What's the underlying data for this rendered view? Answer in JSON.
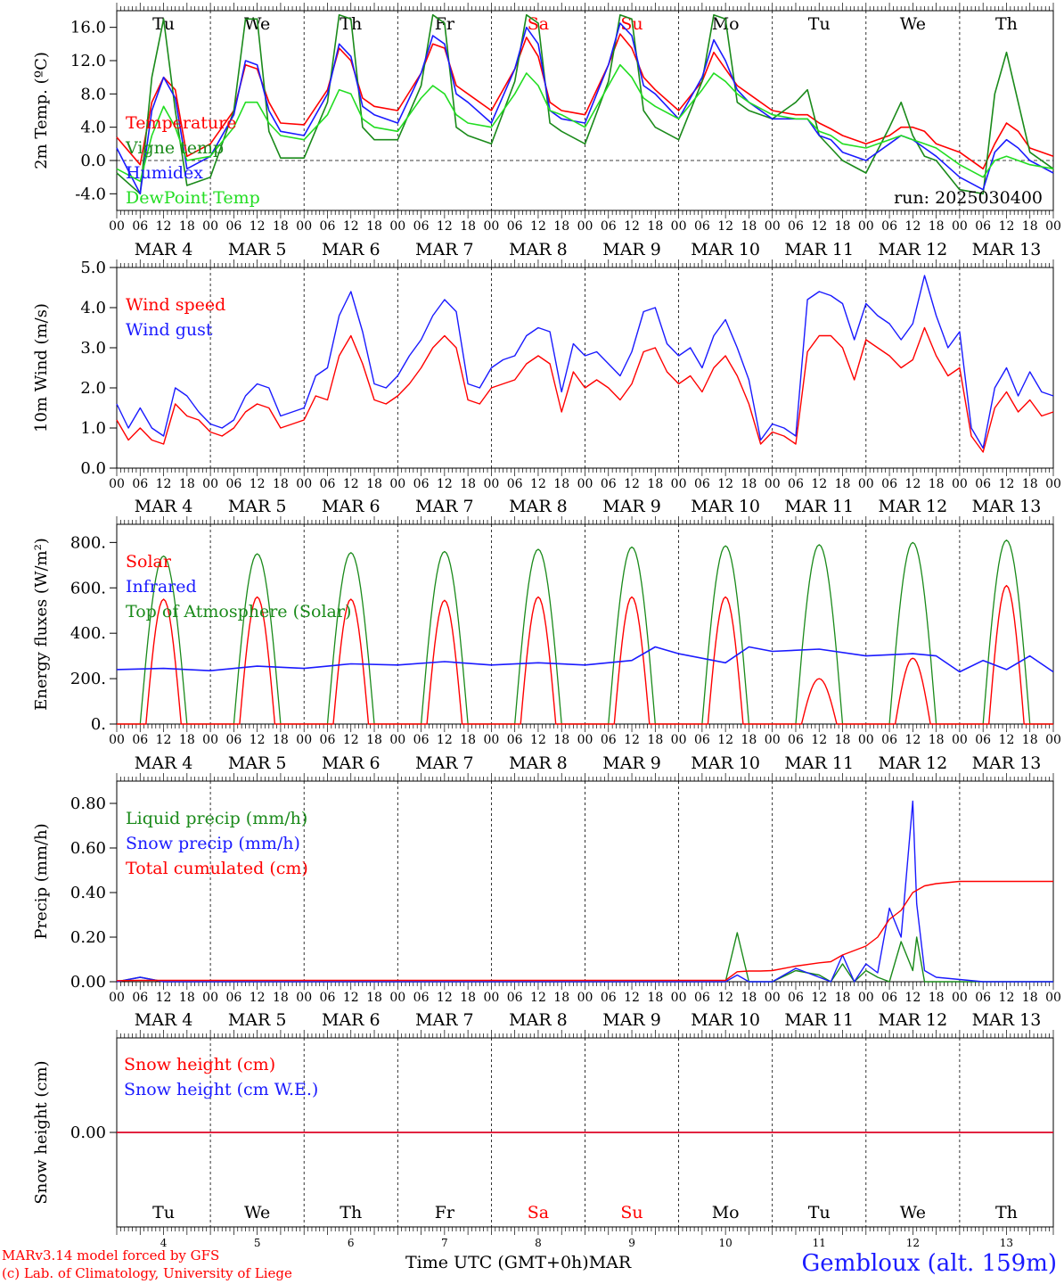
{
  "run_label": "run: 2025030400",
  "footer": {
    "model": "MARv3.14 model forced by GFS",
    "credit": "(c) Lab. of Climatology, University of Liege",
    "axis_title": "Time UTC (GMT+0h)",
    "month": "MAR",
    "station": "Gembloux (alt. 159m)"
  },
  "colors": {
    "red": "#ff0000",
    "blue": "#1a1aff",
    "darkgreen": "#1a8a1a",
    "lightgreen": "#22dd22",
    "saturday_sunday": "#ff0000"
  },
  "days": [
    {
      "weekday": "Tu",
      "date": "MAR  4",
      "num": "4"
    },
    {
      "weekday": "We",
      "date": "MAR  5",
      "num": "5"
    },
    {
      "weekday": "Th",
      "date": "MAR  6",
      "num": "6"
    },
    {
      "weekday": "Fr",
      "date": "MAR  7",
      "num": "7"
    },
    {
      "weekday": "Sa",
      "date": "MAR  8",
      "num": "8",
      "weekend": true
    },
    {
      "weekday": "Su",
      "date": "MAR  9",
      "num": "9",
      "weekend": true
    },
    {
      "weekday": "Mo",
      "date": "MAR 10",
      "num": "10"
    },
    {
      "weekday": "Tu",
      "date": "MAR 11",
      "num": "11"
    },
    {
      "weekday": "We",
      "date": "MAR 12",
      "num": "12"
    },
    {
      "weekday": "Th",
      "date": "MAR 13",
      "num": "13"
    }
  ],
  "hour_ticks": [
    "00",
    "06",
    "12",
    "18"
  ],
  "chart_data": [
    {
      "type": "line",
      "ylabel": "2m Temp. (ºC)",
      "ylim": [
        -6,
        18
      ],
      "yticks": [
        "-4.0",
        "0.0",
        "4.0",
        "8.0",
        "12.0",
        "16.0"
      ],
      "ytick_values": [
        -4,
        0,
        4,
        8,
        12,
        16
      ],
      "zero_line": true,
      "legend": [
        "Temperature",
        "Vigne temp",
        "Humidex",
        "DewPoint Temp"
      ],
      "x_hours": [
        0,
        6,
        9,
        12,
        15,
        18,
        24,
        30,
        33,
        36,
        39,
        42,
        48,
        54,
        57,
        60,
        63,
        66,
        72,
        78,
        81,
        84,
        87,
        90,
        96,
        102,
        105,
        108,
        111,
        114,
        120,
        126,
        129,
        132,
        135,
        138,
        144,
        150,
        153,
        156,
        159,
        162,
        168,
        174,
        177,
        180,
        183,
        186,
        192,
        198,
        201,
        204,
        207,
        210,
        216,
        222,
        225,
        228,
        231,
        234,
        240
      ],
      "series": [
        {
          "name": "Temperature",
          "color": "#ff0000",
          "values": [
            2.8,
            -0.5,
            7.0,
            10.0,
            8.5,
            0.5,
            2.0,
            6.0,
            11.5,
            11.0,
            7.0,
            4.5,
            4.3,
            8.5,
            13.5,
            12.0,
            7.5,
            6.5,
            6.0,
            10.5,
            14.0,
            13.5,
            9.0,
            8.0,
            6.0,
            11.0,
            14.8,
            12.5,
            7.0,
            6.0,
            5.5,
            11.5,
            15.2,
            13.5,
            10.0,
            8.5,
            6.0,
            9.5,
            13.0,
            11.0,
            9.0,
            8.0,
            6.0,
            5.5,
            5.5,
            4.5,
            3.8,
            3.0,
            2.0,
            3.0,
            4.0,
            4.0,
            3.5,
            2.0,
            1.0,
            -1.0,
            2.0,
            4.5,
            3.5,
            1.5,
            0.5
          ]
        },
        {
          "name": "Vigne temp",
          "color": "#1a8a1a",
          "values": [
            -1.5,
            -4.0,
            10.0,
            17.0,
            6.0,
            -3.0,
            -2.0,
            6.0,
            17.0,
            17.0,
            3.5,
            0.3,
            0.3,
            7.0,
            17.5,
            17.0,
            4.0,
            2.5,
            2.5,
            9.0,
            17.5,
            16.5,
            4.0,
            3.0,
            2.0,
            9.5,
            17.5,
            16.5,
            4.5,
            3.5,
            2.0,
            9.5,
            17.5,
            17.0,
            6.0,
            4.0,
            2.5,
            9.5,
            17.5,
            17.0,
            7.0,
            6.0,
            5.0,
            7.0,
            8.5,
            3.0,
            1.5,
            0.0,
            -1.5,
            4.0,
            7.0,
            3.0,
            0.5,
            0.0,
            -3.5,
            -4.0,
            8.0,
            13.0,
            7.0,
            1.0,
            -1.0
          ]
        },
        {
          "name": "Humidex",
          "color": "#1a1aff",
          "values": [
            1.5,
            -4.0,
            6.0,
            10.0,
            7.5,
            -1.0,
            0.5,
            5.5,
            12.0,
            11.5,
            6.0,
            3.5,
            3.0,
            8.0,
            14.0,
            12.5,
            6.5,
            5.5,
            4.5,
            10.5,
            15.0,
            14.0,
            8.0,
            7.0,
            4.5,
            11.0,
            16.0,
            14.0,
            6.0,
            5.0,
            4.5,
            11.5,
            16.5,
            15.0,
            9.0,
            8.0,
            5.0,
            10.0,
            14.5,
            12.0,
            8.5,
            7.0,
            5.0,
            5.0,
            5.0,
            3.0,
            2.5,
            1.0,
            0.0,
            2.0,
            3.0,
            2.5,
            1.5,
            0.5,
            -2.0,
            -3.5,
            1.0,
            2.5,
            1.5,
            0.0,
            -1.5
          ]
        },
        {
          "name": "DewPoint Temp",
          "color": "#22dd22",
          "values": [
            -1.0,
            -2.5,
            3.0,
            6.5,
            4.0,
            0.0,
            0.5,
            4.0,
            7.0,
            7.0,
            4.5,
            3.0,
            2.5,
            5.5,
            8.5,
            8.0,
            5.0,
            4.0,
            3.5,
            7.5,
            9.0,
            8.0,
            5.5,
            4.5,
            4.0,
            8.0,
            10.5,
            9.0,
            6.0,
            5.5,
            4.0,
            9.0,
            11.5,
            10.0,
            7.5,
            6.5,
            5.0,
            8.5,
            10.5,
            9.5,
            8.0,
            7.0,
            5.5,
            5.0,
            5.0,
            3.5,
            3.0,
            2.0,
            1.5,
            2.5,
            3.0,
            2.5,
            2.0,
            1.5,
            -0.5,
            -2.0,
            0.0,
            0.5,
            0.0,
            -0.5,
            -1.0
          ]
        }
      ]
    },
    {
      "type": "line",
      "ylabel": "10m Wind (m/s)",
      "ylim": [
        0,
        5
      ],
      "yticks": [
        "0.0",
        "1.0",
        "2.0",
        "3.0",
        "4.0",
        "5.0"
      ],
      "ytick_values": [
        0,
        1,
        2,
        3,
        4,
        5
      ],
      "legend": [
        "Wind speed",
        "Wind gust"
      ],
      "x_hours": [
        0,
        3,
        6,
        9,
        12,
        15,
        18,
        21,
        24,
        27,
        30,
        33,
        36,
        39,
        42,
        45,
        48,
        51,
        54,
        57,
        60,
        63,
        66,
        69,
        72,
        75,
        78,
        81,
        84,
        87,
        90,
        93,
        96,
        99,
        102,
        105,
        108,
        111,
        114,
        117,
        120,
        123,
        126,
        129,
        132,
        135,
        138,
        141,
        144,
        147,
        150,
        153,
        156,
        159,
        162,
        165,
        168,
        171,
        174,
        177,
        180,
        183,
        186,
        189,
        192,
        195,
        198,
        201,
        204,
        207,
        210,
        213,
        216,
        219,
        222,
        225,
        228,
        231,
        234,
        237,
        240
      ],
      "series": [
        {
          "name": "Wind speed",
          "color": "#ff0000",
          "values": [
            1.2,
            0.7,
            1.0,
            0.7,
            0.6,
            1.6,
            1.3,
            1.2,
            0.9,
            0.8,
            1.0,
            1.4,
            1.6,
            1.5,
            1.0,
            1.1,
            1.2,
            1.8,
            1.7,
            2.8,
            3.3,
            2.6,
            1.7,
            1.6,
            1.8,
            2.1,
            2.5,
            3.0,
            3.3,
            3.0,
            1.7,
            1.6,
            2.0,
            2.1,
            2.2,
            2.6,
            2.8,
            2.6,
            1.4,
            2.4,
            2.0,
            2.2,
            2.0,
            1.7,
            2.1,
            2.9,
            3.0,
            2.4,
            2.1,
            2.3,
            1.9,
            2.5,
            2.8,
            2.3,
            1.6,
            0.6,
            0.9,
            0.8,
            0.6,
            2.9,
            3.3,
            3.3,
            3.0,
            2.2,
            3.2,
            3.0,
            2.8,
            2.5,
            2.7,
            3.5,
            2.8,
            2.3,
            2.5,
            0.8,
            0.4,
            1.5,
            1.9,
            1.4,
            1.7,
            1.3,
            1.4
          ]
        },
        {
          "name": "Wind gust",
          "color": "#1a1aff",
          "values": [
            1.6,
            1.0,
            1.5,
            1.0,
            0.8,
            2.0,
            1.8,
            1.4,
            1.1,
            1.0,
            1.2,
            1.8,
            2.1,
            2.0,
            1.3,
            1.4,
            1.5,
            2.3,
            2.5,
            3.8,
            4.4,
            3.4,
            2.1,
            2.0,
            2.3,
            2.8,
            3.2,
            3.8,
            4.2,
            3.9,
            2.1,
            2.0,
            2.5,
            2.7,
            2.8,
            3.3,
            3.5,
            3.4,
            1.9,
            3.1,
            2.8,
            2.9,
            2.6,
            2.3,
            2.9,
            3.9,
            4.0,
            3.1,
            2.8,
            3.0,
            2.5,
            3.3,
            3.7,
            3.0,
            2.2,
            0.7,
            1.1,
            1.0,
            0.8,
            4.2,
            4.4,
            4.3,
            4.1,
            3.2,
            4.1,
            3.8,
            3.6,
            3.2,
            3.6,
            4.8,
            3.8,
            3.0,
            3.4,
            1.0,
            0.5,
            2.0,
            2.5,
            1.8,
            2.4,
            1.9,
            1.8
          ]
        }
      ]
    },
    {
      "type": "line",
      "ylabel": "Energy fluxes (W/m²)",
      "ylim": [
        0,
        880
      ],
      "yticks": [
        "0.",
        "200.",
        "400.",
        "600.",
        "800."
      ],
      "ytick_values": [
        0,
        200,
        400,
        600,
        800
      ],
      "legend": [
        "Solar",
        "Infrared",
        "Top of Atmosphere (Solar)"
      ],
      "solar_peaks": [
        550,
        560,
        550,
        545,
        560,
        560,
        560,
        200,
        290,
        610
      ],
      "toa_peaks": [
        740,
        750,
        755,
        760,
        770,
        780,
        785,
        790,
        800,
        810
      ],
      "infrared_hours": [
        0,
        12,
        24,
        36,
        48,
        60,
        72,
        84,
        96,
        108,
        120,
        132,
        138,
        144,
        156,
        162,
        168,
        180,
        192,
        204,
        210,
        216,
        222,
        228,
        234,
        240
      ],
      "infrared_values": [
        240,
        245,
        235,
        255,
        245,
        265,
        260,
        275,
        260,
        270,
        260,
        280,
        340,
        310,
        270,
        340,
        320,
        330,
        300,
        310,
        300,
        230,
        280,
        240,
        300,
        230
      ],
      "series_colors": {
        "Solar": "#ff0000",
        "Infrared": "#1a1aff",
        "Top of Atmosphere (Solar)": "#1a8a1a"
      }
    },
    {
      "type": "line",
      "ylabel": "Precip (mm/h)",
      "ylim": [
        0,
        0.9
      ],
      "yticks": [
        "0.00",
        "0.20",
        "0.40",
        "0.60",
        "0.80"
      ],
      "ytick_values": [
        0,
        0.2,
        0.4,
        0.6,
        0.8
      ],
      "legend": [
        "Liquid precip (mm/h)",
        "Snow precip (mm/h)",
        "Total cumulated (cm)"
      ],
      "x_hours": [
        0,
        6,
        12,
        18,
        24,
        48,
        72,
        96,
        120,
        144,
        156,
        159,
        162,
        165,
        168,
        174,
        180,
        183,
        186,
        189,
        192,
        195,
        198,
        201,
        204,
        205,
        207,
        210,
        216,
        222,
        228,
        234,
        240
      ],
      "series": [
        {
          "name": "Liquid precip (mm/h)",
          "color": "#1a8a1a",
          "values": [
            0.0,
            0.02,
            0.0,
            0.0,
            0.0,
            0.0,
            0.0,
            0.0,
            0.0,
            0.0,
            0.0,
            0.22,
            0.0,
            0.0,
            0.0,
            0.05,
            0.03,
            0.0,
            0.08,
            0.0,
            0.05,
            0.02,
            0.0,
            0.18,
            0.05,
            0.2,
            0.0,
            0.0,
            0.0,
            0.0,
            0.0,
            0.0,
            0.0
          ]
        },
        {
          "name": "Snow precip (mm/h)",
          "color": "#1a1aff",
          "values": [
            0.0,
            0.02,
            0.0,
            0.0,
            0.0,
            0.0,
            0.0,
            0.0,
            0.0,
            0.0,
            0.0,
            0.03,
            0.0,
            0.0,
            0.0,
            0.06,
            0.02,
            0.0,
            0.12,
            0.0,
            0.08,
            0.04,
            0.33,
            0.2,
            0.81,
            0.35,
            0.05,
            0.02,
            0.01,
            0.0,
            0.0,
            0.0,
            0.0
          ]
        },
        {
          "name": "Total cumulated (cm)",
          "color": "#ff0000",
          "values": [
            0.005,
            0.006,
            0.006,
            0.006,
            0.006,
            0.006,
            0.006,
            0.006,
            0.006,
            0.006,
            0.006,
            0.045,
            0.048,
            0.048,
            0.05,
            0.07,
            0.085,
            0.09,
            0.12,
            0.14,
            0.16,
            0.2,
            0.28,
            0.32,
            0.4,
            0.41,
            0.43,
            0.44,
            0.45,
            0.45,
            0.45,
            0.45,
            0.45
          ]
        }
      ]
    },
    {
      "type": "line",
      "ylabel": "Snow height (cm)",
      "ylim": [
        -1,
        1
      ],
      "yticks": [
        "0.00"
      ],
      "ytick_values": [
        0
      ],
      "legend": [
        "Snow height (cm)",
        "Snow height (cm W.E.)"
      ],
      "x_hours": [
        0,
        240
      ],
      "series": [
        {
          "name": "Snow height (cm)",
          "color": "#ff0000",
          "values": [
            0,
            0
          ]
        },
        {
          "name": "Snow height (cm W.E.)",
          "color": "#1a1aff",
          "values": [
            0,
            0
          ]
        }
      ]
    }
  ]
}
